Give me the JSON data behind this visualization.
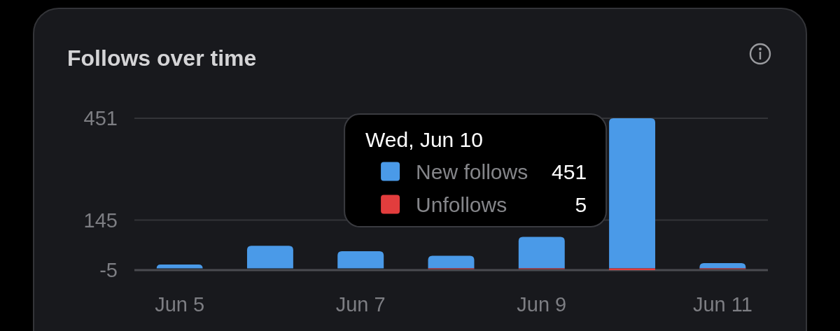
{
  "chart_data": {
    "type": "bar",
    "title": "Follows over time",
    "categories": [
      "Jun 5",
      null,
      "Jun 7",
      null,
      "Jun 9",
      null,
      "Jun 11"
    ],
    "series": [
      {
        "name": "New follows",
        "color": "#4a9ae8",
        "values": [
          12,
          68,
          52,
          38,
          95,
          451,
          16
        ]
      },
      {
        "name": "Unfollows",
        "color": "#e23d3d",
        "values": [
          0,
          0,
          0,
          -2,
          -2,
          -5,
          -2
        ]
      }
    ],
    "stacked": true,
    "ylim": [
      -5,
      451
    ],
    "yticks": [
      -5,
      145,
      451
    ],
    "grid": "y",
    "legend": "top",
    "annotations": [
      "Wed, Jun 10",
      "451",
      "5"
    ]
  }
}
